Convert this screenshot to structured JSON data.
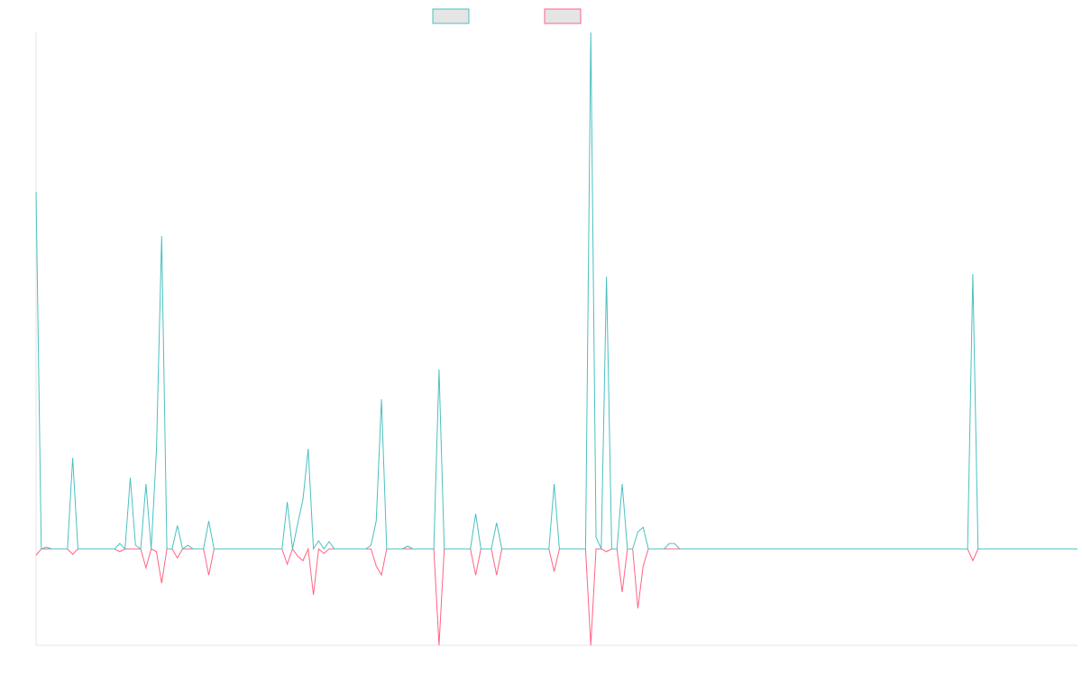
{
  "chart_data": {
    "type": "line",
    "ylim": [
      -107,
      573
    ],
    "series": [
      {
        "color": "#4bc0c0",
        "values": [
          396,
          0,
          2,
          0,
          0,
          0,
          0,
          101,
          0,
          0,
          0,
          0,
          0,
          0,
          0,
          0,
          6,
          0,
          79,
          4,
          0,
          72,
          0,
          109,
          347,
          0,
          0,
          26,
          0,
          4,
          0,
          0,
          0,
          31,
          0,
          0,
          0,
          0,
          0,
          0,
          0,
          0,
          0,
          0,
          0,
          0,
          0,
          0,
          52,
          0,
          28,
          55,
          111,
          0,
          9,
          0,
          8,
          0,
          0,
          0,
          0,
          0,
          0,
          0,
          4,
          31,
          166,
          0,
          0,
          0,
          0,
          3,
          0,
          0,
          0,
          0,
          0,
          199,
          0,
          0,
          0,
          0,
          0,
          0,
          39,
          0,
          0,
          0,
          29,
          0,
          0,
          0,
          0,
          0,
          0,
          0,
          0,
          0,
          0,
          72,
          0,
          0,
          0,
          0,
          0,
          0,
          573,
          13,
          0,
          302,
          0,
          0,
          72,
          0,
          0,
          19,
          24,
          0,
          0,
          0,
          0,
          6,
          6,
          0,
          0,
          0,
          0,
          0,
          0,
          0,
          0,
          0,
          0,
          0,
          0,
          0,
          0,
          0,
          0,
          0,
          0,
          0,
          0,
          0,
          0,
          0,
          0,
          0,
          0,
          0,
          0,
          0,
          0,
          0,
          0,
          0,
          0,
          0,
          0,
          0,
          0,
          0,
          0,
          0,
          0,
          0,
          0,
          0,
          0,
          0,
          0,
          0,
          0,
          0,
          0,
          0,
          0,
          0,
          0,
          305,
          0,
          0,
          0,
          0,
          0,
          0,
          0,
          0,
          0,
          0,
          0,
          0,
          0,
          0,
          0,
          0,
          0,
          0,
          0,
          0
        ]
      },
      {
        "color": "#ff6384",
        "values": [
          -7,
          0,
          0,
          0,
          0,
          0,
          0,
          -6,
          0,
          0,
          0,
          0,
          0,
          0,
          0,
          0,
          -3,
          0,
          0,
          0,
          0,
          -21,
          0,
          -3,
          -38,
          0,
          0,
          -10,
          0,
          0,
          0,
          0,
          0,
          -29,
          0,
          0,
          0,
          0,
          0,
          0,
          0,
          0,
          0,
          0,
          0,
          0,
          0,
          0,
          -17,
          0,
          -8,
          -13,
          0,
          -51,
          0,
          -5,
          0,
          0,
          0,
          0,
          0,
          0,
          0,
          0,
          0,
          -19,
          -29,
          0,
          0,
          0,
          0,
          0,
          0,
          0,
          0,
          0,
          0,
          -107,
          0,
          0,
          0,
          0,
          0,
          0,
          -29,
          0,
          0,
          0,
          -29,
          0,
          0,
          0,
          0,
          0,
          0,
          0,
          0,
          0,
          0,
          -25,
          0,
          0,
          0,
          0,
          0,
          0,
          -107,
          0,
          0,
          -3,
          0,
          0,
          -48,
          0,
          0,
          -66,
          -19,
          0,
          0,
          0,
          0,
          0,
          0,
          0,
          0,
          0,
          0,
          0,
          0,
          0,
          0,
          0,
          0,
          0,
          0,
          0,
          0,
          0,
          0,
          0,
          0,
          0,
          0,
          0,
          0,
          0,
          0,
          0,
          0,
          0,
          0,
          0,
          0,
          0,
          0,
          0,
          0,
          0,
          0,
          0,
          0,
          0,
          0,
          0,
          0,
          0,
          0,
          0,
          0,
          0,
          0,
          0,
          0,
          0,
          0,
          0,
          0,
          0,
          0,
          -13,
          0,
          0,
          0,
          0,
          0,
          0,
          0,
          0,
          0,
          0,
          0,
          0,
          0,
          0,
          0,
          0,
          0,
          0,
          0,
          0
        ]
      }
    ]
  }
}
